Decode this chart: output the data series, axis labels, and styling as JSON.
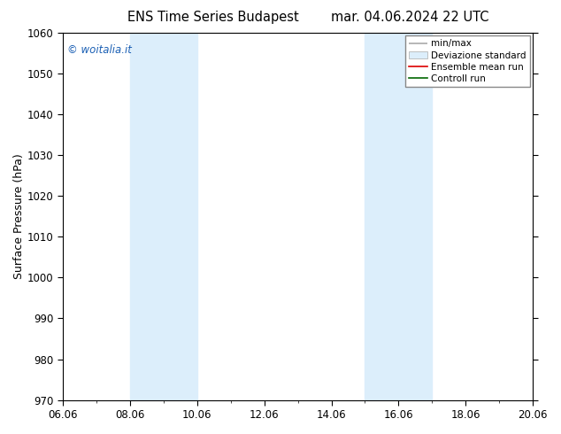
{
  "title_left": "ENS Time Series Budapest",
  "title_right": "mar. 04.06.2024 22 UTC",
  "ylabel": "Surface Pressure (hPa)",
  "ylim": [
    970,
    1060
  ],
  "yticks": [
    970,
    980,
    990,
    1000,
    1010,
    1020,
    1030,
    1040,
    1050,
    1060
  ],
  "xlim": [
    0,
    14
  ],
  "xtick_labels": [
    "06.06",
    "08.06",
    "10.06",
    "12.06",
    "14.06",
    "16.06",
    "18.06",
    "20.06"
  ],
  "xtick_positions": [
    0,
    2,
    4,
    6,
    8,
    10,
    12,
    14
  ],
  "shade_bands": [
    [
      2.0,
      3.0,
      "#dceefb"
    ],
    [
      3.0,
      4.0,
      "#dceefb"
    ],
    [
      9.0,
      10.0,
      "#dceefb"
    ],
    [
      10.0,
      11.0,
      "#dceefb"
    ]
  ],
  "watermark": "© woitalia.it",
  "watermark_color": "#1a5fb4",
  "legend_items": [
    "min/max",
    "Deviazione standard",
    "Ensemble mean run",
    "Controll run"
  ],
  "legend_line_colors": [
    "#aaaaaa",
    "#cccccc",
    "#dd0000",
    "#006600"
  ],
  "background_color": "#ffffff",
  "fig_width": 6.34,
  "fig_height": 4.9,
  "dpi": 100,
  "title_fontsize": 10.5,
  "ylabel_fontsize": 9,
  "tick_fontsize": 8.5,
  "legend_fontsize": 7.5
}
